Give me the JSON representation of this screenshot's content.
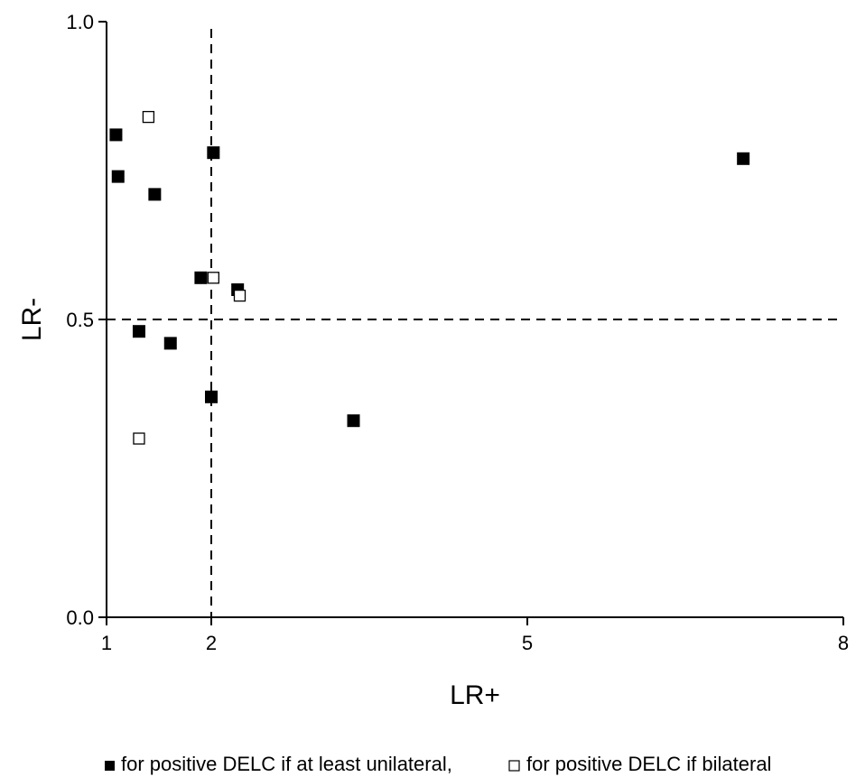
{
  "chart_data": {
    "type": "scatter",
    "xlabel": "LR+",
    "ylabel": "LR-",
    "xlim": [
      1,
      8
    ],
    "ylim": [
      0,
      1
    ],
    "xticks": [
      "1",
      "2",
      "5",
      "8"
    ],
    "yticks": [
      "0.0",
      "0.5",
      "1.0"
    ],
    "reference_lines": {
      "x": 2,
      "y": 0.5,
      "style": "dashed"
    },
    "grid": false,
    "legend_position": "bottom",
    "series": [
      {
        "name": "for positive DELC if at least unilateral,",
        "marker": "filled-square",
        "color": "#000000",
        "points": [
          {
            "x": 1.09,
            "y": 0.81
          },
          {
            "x": 1.11,
            "y": 0.74
          },
          {
            "x": 1.46,
            "y": 0.71
          },
          {
            "x": 2.02,
            "y": 0.78
          },
          {
            "x": 7.05,
            "y": 0.77
          },
          {
            "x": 1.9,
            "y": 0.57
          },
          {
            "x": 2.25,
            "y": 0.55
          },
          {
            "x": 1.31,
            "y": 0.48
          },
          {
            "x": 1.61,
            "y": 0.46
          },
          {
            "x": 2.0,
            "y": 0.37
          },
          {
            "x": 3.35,
            "y": 0.33
          }
        ]
      },
      {
        "name": "for positive DELC if bilateral",
        "marker": "open-square",
        "color": "#000000",
        "points": [
          {
            "x": 1.4,
            "y": 0.84
          },
          {
            "x": 2.02,
            "y": 0.57
          },
          {
            "x": 2.27,
            "y": 0.54
          },
          {
            "x": 1.31,
            "y": 0.3
          }
        ]
      }
    ]
  }
}
